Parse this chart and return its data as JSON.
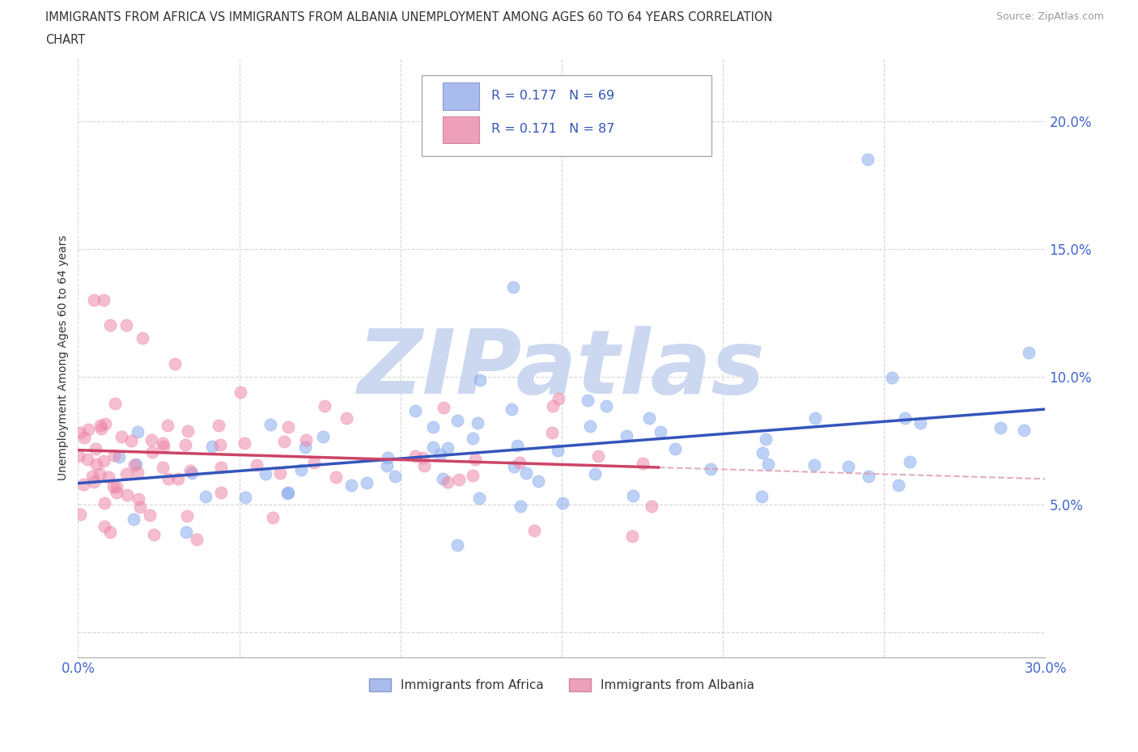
{
  "title_line1": "IMMIGRANTS FROM AFRICA VS IMMIGRANTS FROM ALBANIA UNEMPLOYMENT AMONG AGES 60 TO 64 YEARS CORRELATION",
  "title_line2": "CHART",
  "source_text": "Source: ZipAtlas.com",
  "ylabel": "Unemployment Among Ages 60 to 64 years",
  "xlim": [
    0.0,
    0.3
  ],
  "ylim": [
    -0.01,
    0.225
  ],
  "color_africa": "#88aaee",
  "color_albania": "#ee88aa",
  "trendline_africa_color": "#3355bb",
  "trendline_albania_color": "#cc4466",
  "trendline_albania_dash_color": "#dd99aa",
  "watermark_text": "ZIPatlas",
  "watermark_color": "#ccd8f0",
  "legend_r1": "R = 0.177",
  "legend_n1": "N = 69",
  "legend_r2": "R = 0.171",
  "legend_n2": "N = 87",
  "legend_text_color": "#3355bb",
  "legend_patch_africa": "#aabbee",
  "legend_patch_albania": "#eea0bb"
}
